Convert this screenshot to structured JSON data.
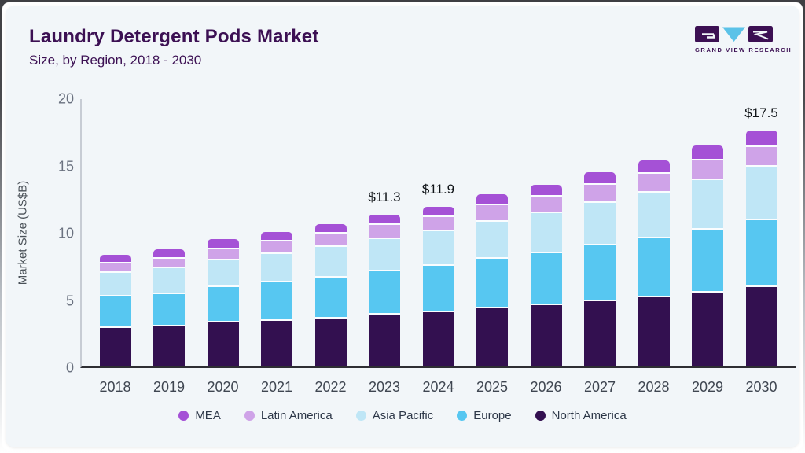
{
  "header": {
    "title": "Laundry Detergent Pods Market",
    "subtitle": "Size, by Region, 2018 - 2030"
  },
  "logo": {
    "text": "GRAND VIEW RESEARCH",
    "dark_color": "#3c1053",
    "accent_color": "#5bc2e8"
  },
  "theme": {
    "card_background": "#f2f6f9",
    "title_color": "#3c1053",
    "axis_line_color": "#c7ccd4",
    "baseline_color": "#2e2e33",
    "tick_label_color": "#6b7280",
    "x_label_color": "#3f4651",
    "value_label_color": "#101418"
  },
  "chart_data": {
    "type": "bar",
    "stacked": true,
    "title": "Laundry Detergent Pods Market Size, by Region, 2018 - 2030",
    "xlabel": "",
    "ylabel": "Market Size (US$B)",
    "ylim": [
      0,
      20
    ],
    "yticks": [
      0,
      5,
      10,
      15,
      20
    ],
    "grid": false,
    "legend_position": "bottom",
    "categories": [
      "2018",
      "2019",
      "2020",
      "2021",
      "2022",
      "2023",
      "2024",
      "2025",
      "2026",
      "2027",
      "2028",
      "2029",
      "2030"
    ],
    "series": [
      {
        "name": "MEA",
        "color": "#a551d6",
        "values": [
          0.5,
          0.55,
          0.6,
          0.6,
          0.6,
          0.65,
          0.65,
          0.7,
          0.75,
          0.85,
          0.9,
          1.0,
          1.1
        ]
      },
      {
        "name": "Latin America",
        "color": "#cfa3e8",
        "values": [
          0.7,
          0.75,
          0.85,
          0.9,
          1.0,
          1.05,
          1.1,
          1.2,
          1.25,
          1.3,
          1.4,
          1.45,
          1.5
        ]
      },
      {
        "name": "Asia Pacific",
        "color": "#bfe6f6",
        "values": [
          1.8,
          1.9,
          2.0,
          2.15,
          2.3,
          2.4,
          2.55,
          2.8,
          2.95,
          3.2,
          3.4,
          3.7,
          3.95
        ]
      },
      {
        "name": "Europe",
        "color": "#57c7f1",
        "values": [
          2.3,
          2.4,
          2.6,
          2.85,
          3.0,
          3.25,
          3.45,
          3.65,
          3.85,
          4.15,
          4.4,
          4.7,
          5.0
        ]
      },
      {
        "name": "North America",
        "color": "#331050",
        "values": [
          3.0,
          3.1,
          3.4,
          3.5,
          3.7,
          3.95,
          4.15,
          4.45,
          4.7,
          4.95,
          5.25,
          5.6,
          6.0
        ]
      }
    ],
    "bar_labels": {
      "2023": "$11.3",
      "2024": "$11.9",
      "2030": "$17.5"
    }
  }
}
